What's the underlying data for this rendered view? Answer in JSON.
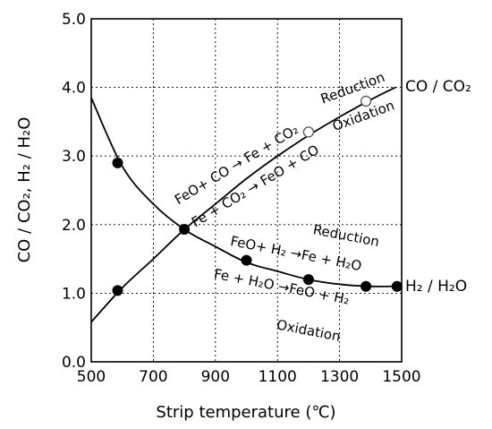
{
  "chart_data": {
    "type": "line",
    "xlabel": "Strip temperature (℃)",
    "ylabel": "CO / CO₂,  H₂ / H₂O",
    "xlim": [
      500,
      1500
    ],
    "ylim": [
      0.0,
      5.0
    ],
    "x_ticks": [
      500,
      700,
      900,
      1100,
      1300,
      1500
    ],
    "y_ticks": [
      0.0,
      1.0,
      2.0,
      3.0,
      4.0,
      5.0
    ],
    "x_tick_labels": [
      "500",
      "700",
      "900",
      "1100",
      "1300",
      "1500"
    ],
    "y_tick_labels": [
      "0.0",
      "1.0",
      "2.0",
      "3.0",
      "4.0",
      "5.0"
    ],
    "grid": true,
    "series": [
      {
        "name": "CO / CO₂",
        "x": [
          500,
          600,
          700,
          800,
          900,
          1000,
          1100,
          1200,
          1300,
          1400,
          1480
        ],
        "y": [
          0.58,
          1.08,
          1.5,
          1.93,
          2.3,
          2.67,
          3.0,
          3.3,
          3.57,
          3.82,
          4.0
        ]
      },
      {
        "name": "H₂ / H₂O",
        "x": [
          500,
          600,
          700,
          800,
          900,
          1000,
          1100,
          1200,
          1300,
          1400,
          1480
        ],
        "y": [
          3.85,
          2.85,
          2.3,
          1.93,
          1.68,
          1.45,
          1.32,
          1.2,
          1.13,
          1.1,
          1.1
        ]
      }
    ],
    "markers_filled": [
      {
        "x": 585,
        "y": 1.04
      },
      {
        "x": 585,
        "y": 2.9
      },
      {
        "x": 800,
        "y": 1.93
      },
      {
        "x": 1000,
        "y": 1.48
      },
      {
        "x": 1200,
        "y": 1.2
      },
      {
        "x": 1385,
        "y": 1.1
      },
      {
        "x": 1485,
        "y": 1.1
      }
    ],
    "markers_open": [
      {
        "x": 1200,
        "y": 3.35
      },
      {
        "x": 1385,
        "y": 3.8
      }
    ],
    "annotations": {
      "reduction_upper": "Reduction",
      "oxidation_upper": "Oxidation",
      "co_reduction_reaction": "FeO+ CO → Fe + CO₂",
      "co_oxidation_reaction": "Fe + CO₂ → FeO + CO",
      "reduction_lower": "Reduction",
      "h2_reduction_reaction": "FeO+ H₂ →Fe + H₂O",
      "h2_oxidation_reaction": "Fe + H₂O →FeO + H₂",
      "oxidation_lower": "Oxidation"
    },
    "curve_labels": {
      "co": "CO / CO₂",
      "h2": "H₂ / H₂O"
    }
  }
}
